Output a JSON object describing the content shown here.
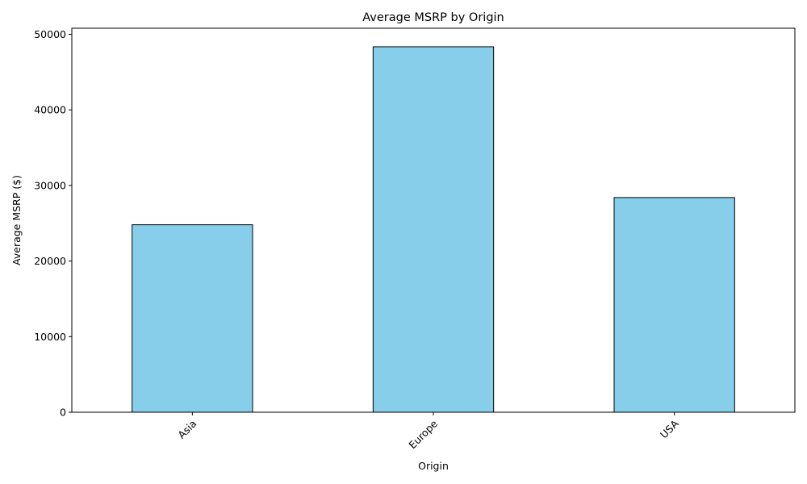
{
  "chart_data": {
    "type": "bar",
    "title": "Average MSRP by Origin",
    "xlabel": "Origin",
    "ylabel": "Average MSRP ($)",
    "categories": [
      "Asia",
      "Europe",
      "USA"
    ],
    "values": [
      24800,
      48350,
      28400
    ],
    "ylim": [
      0,
      50800
    ],
    "yticks": [
      0,
      10000,
      20000,
      30000,
      40000,
      50000
    ],
    "ytick_labels": [
      "0",
      "10000",
      "20000",
      "30000",
      "40000",
      "50000"
    ],
    "grid": false,
    "bar_color": "#87ceeb",
    "bar_edge_color": "#000000"
  }
}
